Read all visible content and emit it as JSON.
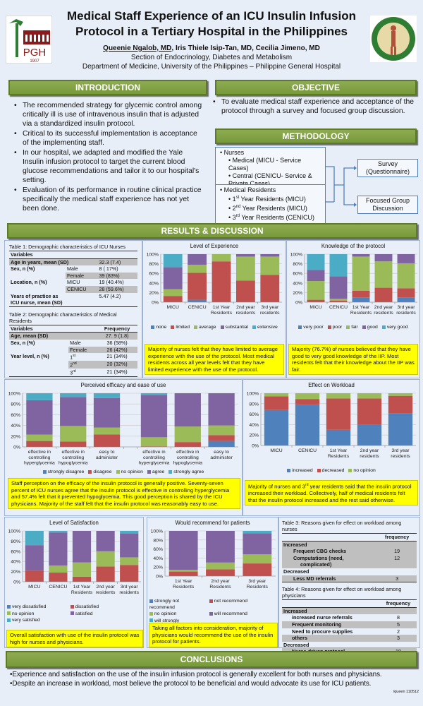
{
  "header": {
    "title_line1": "Medical Staff Experience of an ICU Insulin Infusion",
    "title_line2": "Protocol in a Tertiary Hospital in the Philippines",
    "author_primary": "Queenie Ngalob, MD",
    "authors_rest": ",   Iris Thiele Isip-Tan, MD, Cecilia Jimeno, MD",
    "section": "Section of Endocrinology, Diabetes and Metabolism",
    "department": "Department of Medicine, University of the Philippines – Philippine General Hospital",
    "logo_left_text": "PGH",
    "logo_left_year": "1907"
  },
  "intro": {
    "heading": "INTRODUCTION",
    "bullets": [
      "The recommended strategy for glycemic control among critically ill is use of  intravenous insulin that is adjusted via a standardized insulin protocol.",
      "Critical to its successful implementation is acceptance of the implementing staff.",
      "In our hospital, we adapted and modified the Yale Insulin infusion protocol to target the current blood glucose recommendations and tailor it to our hospital's setting.",
      "Evaluation of its performance in routine clinical practice specifically the medical staff experience  has not yet been done."
    ]
  },
  "objective": {
    "heading": "OBJECTIVE",
    "bullets": [
      "To evaluate medical staff experience and acceptance of the protocol through a survey and focused group discussion."
    ]
  },
  "methodology": {
    "heading": "METHODOLOGY",
    "nurses": {
      "label": "Nurses",
      "items": [
        "Medical (MICU - Service Cases)",
        "Central (CENICU- Service & Private Cases)"
      ]
    },
    "residents": {
      "label": "Medical Residents",
      "items": [
        {
          "ord": "1",
          "sup": "st",
          "text": " Year Residents (MICU)"
        },
        {
          "ord": "2",
          "sup": "nd",
          "text": " Year Residents (MICU)"
        },
        {
          "ord": "3",
          "sup": "rd",
          "text": " Year Residents (CENICU)"
        }
      ]
    },
    "outputs": [
      "Survey (Questionnaire)",
      "Focused Group Discussion"
    ]
  },
  "results": {
    "heading": "RESULTS & DISCUSSION"
  },
  "table1": {
    "title": "Table 1:  Demographic characteristics of ICU Nurses",
    "header": "Variables",
    "age": "Age in years, mean (SD)",
    "age_val": "32.3  (7.4)",
    "sex": "Sex, n (%)",
    "male": "Male",
    "male_val": "8 ( 17%)",
    "female": "Female",
    "female_val": "39 (83%)",
    "loc": "Location, n (%)",
    "micu": "MICU",
    "micu_val": "19 (40.4%)",
    "cenicu": "CENICU",
    "cenicu_val": "28 (59.6%)",
    "years": "Years of practice as",
    "years2": "ICU nurse, mean (SD)",
    "years_val": "5.47 (4.2)"
  },
  "table2": {
    "title": "Table 2:  Demographic characteristics of Medical Residents",
    "header": "Variables",
    "freq": "Frequency",
    "age": "Age, mean (SD)",
    "age_val": "27. 9  (1.8)",
    "sex": "Sex, n (%)",
    "male": "Male",
    "male_val": "36  (58%)",
    "female": "Female",
    "female_val": "26  (42%)",
    "year": "Year level, n (%)",
    "y1": "1",
    "y1s": "st",
    "y1_val": "21  (34%)",
    "y2": "2",
    "y2s": "nd",
    "y2_val": "20  (32%)",
    "y3": "3",
    "y3s": "rd",
    "y3_val": "21  (34%)"
  },
  "notes": {
    "experience": "Majority of nurses felt that they have limited to average experience with the use of the protocol. Most medical residents across all year levels felt that they have limited experience with the use of the protocol.",
    "knowledge": "Majority (76.7%) of nurses believed that they have good to very good knowledge of the IIP. Most residents felt that their knowledge about the IIP was fair.",
    "efficacy": "Staff perception on the efficacy of the insulin protocol is generally positive. Seventy-seven percent of ICU nurses agree that the insulin protocol  is effective in controlling hyperglycemia and 57.4% felt that it prevented hypoglycemia.  This good perception is shared by the ICU physicians.  Majority of the staff felt that the insulin protocol was reasonably easy to use.",
    "workload_a": "Majority of nurses and 3",
    "workload_sup": "rd",
    "workload_b": " year residents said that the insulin protocol increased their workload.  Collectively, half of medical residents felt that the insulin protocol increased and the rest said otherwise.",
    "satisfaction": "Overall satisfaction with use of the insulin protocol was high for nurses and physicians.",
    "recommend": "Taking all factors into consideration, majority of physicians would recommend the use of the insulin protocol for patients."
  },
  "table3": {
    "title": "Table 3:  Reasons given for  effect on workload among nurses",
    "freq": "frequency",
    "inc": "Increased",
    "r1": "Frequent CBG checks",
    "v1": "19",
    "r2": "Computations (need,",
    "r2b": "complicated)",
    "v2": "12",
    "dec": "Decreased",
    "r3": "Less MD referrals",
    "v3": "3"
  },
  "table4": {
    "title": "Table 4:  Reasons given for  effect on workload among physicians",
    "freq": "frequency",
    "inc": "Increased",
    "r1": "increased nurse referrals",
    "v1": "8",
    "r2": "Frequent monitoring",
    "v2": "5",
    "r3": "Need to procure supplies",
    "v3": "2",
    "r4": "others",
    "v4": "3",
    "dec": "Decreased",
    "r5": "Nurse-driven protocol",
    "v5": "18"
  },
  "conclusions": {
    "heading": "CONCLUSIONS",
    "bullets": [
      "•Experience and satisfaction on the use of the insulin infusion protocol is generally excellent for both nurses and physicians.",
      "•Despite an increase in workload, most believe the protocol to be beneficial and would advocate its use for ICU patients."
    ]
  },
  "footer": "/queen 110512",
  "colors": {
    "blue": "#4f81bd",
    "red": "#c0504d",
    "green": "#9bbb59",
    "purple": "#8064a2",
    "cyan": "#4bacc6",
    "banner": "#7f9f43",
    "highlight": "#ffff00"
  },
  "chart_data": [
    {
      "id": "experience",
      "type": "bar",
      "stacked": true,
      "title": "Level of Experience",
      "categories": [
        "MICU",
        "CENICU",
        "1st Year Residents",
        "2nd year residents",
        "3rd year residents"
      ],
      "ylim": [
        0,
        100
      ],
      "yticks": [
        "0%",
        "20%",
        "40%",
        "60%",
        "80%",
        "100%"
      ],
      "legend": "bottom",
      "series": [
        {
          "name": "none",
          "color": "#4f81bd",
          "values": [
            0,
            5,
            0,
            0,
            0
          ]
        },
        {
          "name": "limited",
          "color": "#c0504d",
          "values": [
            13,
            56,
            85,
            45,
            57
          ]
        },
        {
          "name": "average",
          "color": "#9bbb59",
          "values": [
            14,
            17,
            15,
            50,
            38
          ]
        },
        {
          "name": "substantial",
          "color": "#8064a2",
          "values": [
            46,
            22,
            0,
            5,
            5
          ]
        },
        {
          "name": "extensive",
          "color": "#4bacc6",
          "values": [
            27,
            0,
            0,
            0,
            0
          ]
        }
      ]
    },
    {
      "id": "knowledge",
      "type": "bar",
      "stacked": true,
      "title": "Knowledge of the protocol",
      "categories": [
        "MICU",
        "CENICU",
        "1st Year Residents",
        "2nd year residents",
        "3rd year residents"
      ],
      "ylim": [
        0,
        100
      ],
      "yticks": [
        "0%",
        "20%",
        "40%",
        "60%",
        "80%",
        "100%"
      ],
      "legend": "bottom",
      "series": [
        {
          "name": "very poor",
          "color": "#4f81bd",
          "values": [
            0,
            0,
            10,
            0,
            10
          ]
        },
        {
          "name": "poor",
          "color": "#c0504d",
          "values": [
            5,
            3,
            14,
            30,
            19
          ]
        },
        {
          "name": "fair",
          "color": "#9bbb59",
          "values": [
            39,
            4,
            71,
            55,
            52
          ]
        },
        {
          "name": "good",
          "color": "#8064a2",
          "values": [
            23,
            47,
            5,
            15,
            19
          ]
        },
        {
          "name": "very good",
          "color": "#4bacc6",
          "values": [
            33,
            46,
            0,
            0,
            0
          ]
        }
      ]
    },
    {
      "id": "efficacy",
      "type": "bar",
      "stacked": true,
      "title": "Perceived efficacy and ease of use",
      "categories": [
        "effective in controlling hyperglycemia",
        "effective in controlling hypoglycemia",
        "easy to administer",
        "",
        "effective in controlling hyperglycemia",
        "effective in controlling hypoglycemia",
        "easy to administer"
      ],
      "ylim": [
        0,
        100
      ],
      "yticks": [
        "0%",
        "20%",
        "40%",
        "60%",
        "80%",
        "100%"
      ],
      "legend": "bottom",
      "series": [
        {
          "name": "strongly disagree",
          "color": "#4f81bd",
          "values": [
            0,
            0,
            0,
            null,
            0,
            0,
            11
          ]
        },
        {
          "name": "disagree",
          "color": "#c0504d",
          "values": [
            11,
            10,
            23,
            null,
            1,
            9,
            11
          ]
        },
        {
          "name": "no opinion",
          "color": "#9bbb59",
          "values": [
            12,
            29,
            13,
            null,
            17,
            29,
            18
          ]
        },
        {
          "name": "agree",
          "color": "#8064a2",
          "values": [
            64,
            54,
            55,
            null,
            79,
            62,
            60
          ]
        },
        {
          "name": "strongly agree",
          "color": "#4bacc6",
          "values": [
            13,
            7,
            9,
            null,
            3,
            0,
            0
          ]
        }
      ]
    },
    {
      "id": "workload",
      "type": "bar",
      "stacked": true,
      "title": "Effect on Workload",
      "categories": [
        "MICU",
        "CENICU",
        "1st Year Residents",
        "2nd year residents",
        "3rd year residents"
      ],
      "ylim": [
        0,
        100
      ],
      "yticks": [
        "0%",
        "20%",
        "40%",
        "60%",
        "80%",
        "100%"
      ],
      "legend": "bottom",
      "series": [
        {
          "name": "increased",
          "color": "#4f81bd",
          "values": [
            68,
            78,
            30,
            40,
            62
          ]
        },
        {
          "name": "decreased",
          "color": "#c0504d",
          "values": [
            26,
            11,
            60,
            50,
            33
          ]
        },
        {
          "name": "no opinion",
          "color": "#9bbb59",
          "values": [
            6,
            11,
            10,
            10,
            5
          ]
        }
      ]
    },
    {
      "id": "satisfaction",
      "type": "bar",
      "stacked": true,
      "title": "Level of Satisfaction",
      "categories": [
        "MICU",
        "CENICU",
        "1st Year Residents",
        "2nd year residents",
        "3rd year residents"
      ],
      "ylim": [
        0,
        100
      ],
      "yticks": [
        "0%",
        "20%",
        "40%",
        "60%",
        "80%",
        "100%"
      ],
      "legend": "bottom",
      "series": [
        {
          "name": "very dissatisfied",
          "color": "#4f81bd",
          "values": [
            0,
            0,
            0,
            0,
            0
          ]
        },
        {
          "name": "dissatisfied",
          "color": "#c0504d",
          "values": [
            22,
            18,
            10,
            30,
            33
          ]
        },
        {
          "name": "no opinion",
          "color": "#9bbb59",
          "values": [
            0,
            14,
            28,
            30,
            15
          ]
        },
        {
          "name": "satisfied",
          "color": "#8064a2",
          "values": [
            50,
            65,
            62,
            40,
            47
          ]
        },
        {
          "name": "very satisfied",
          "color": "#4bacc6",
          "values": [
            28,
            3,
            0,
            0,
            5
          ]
        }
      ]
    },
    {
      "id": "recommend",
      "type": "bar",
      "stacked": true,
      "title": "Would recommend for patients",
      "categories": [
        "1st Year Residents",
        "2nd year Residents",
        "3rd year Residents"
      ],
      "ylim": [
        0,
        100
      ],
      "yticks": [
        "0%",
        "20%",
        "40%",
        "60%",
        "80%",
        "100%"
      ],
      "legend": "bottom",
      "series": [
        {
          "name": "strongly not recommend",
          "color": "#4f81bd",
          "values": [
            0,
            0,
            0
          ]
        },
        {
          "name": "not recommend",
          "color": "#c0504d",
          "values": [
            10,
            15,
            28
          ]
        },
        {
          "name": "no opinion",
          "color": "#9bbb59",
          "values": [
            4,
            15,
            20
          ]
        },
        {
          "name": "will recommend",
          "color": "#8064a2",
          "values": [
            86,
            70,
            47
          ]
        },
        {
          "name": "will strongly recommend",
          "color": "#4bacc6",
          "values": [
            0,
            0,
            5
          ]
        }
      ]
    }
  ]
}
